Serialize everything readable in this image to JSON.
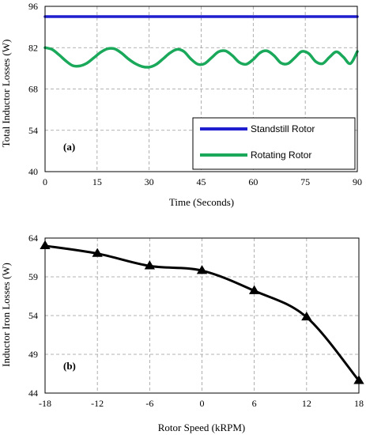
{
  "chart_data": [
    {
      "type": "line",
      "panel_label": "(a)",
      "xlabel": "Time (Seconds)",
      "ylabel": "Total Inductor Losses (W)",
      "xlim": [
        0,
        90
      ],
      "ylim": [
        40,
        96
      ],
      "xticks": [
        0,
        15,
        30,
        45,
        60,
        75,
        90
      ],
      "yticks": [
        40,
        54,
        68,
        82,
        96
      ],
      "grid": true,
      "legend_position": "bottom-right",
      "series": [
        {
          "name": "Standstill Rotor",
          "color": "#1f1fd0",
          "x": [
            0,
            90
          ],
          "y": [
            92.5,
            92.5
          ]
        },
        {
          "name": "Rotating Rotor",
          "color": "#1aa85a",
          "x": [
            0,
            2,
            4,
            6,
            8,
            10,
            12,
            14,
            16,
            18,
            20,
            22,
            24,
            26,
            28,
            30,
            32,
            34,
            36,
            38,
            40,
            42,
            44,
            46,
            48,
            50,
            52,
            54,
            56,
            58,
            60,
            62,
            64,
            66,
            68,
            70,
            72,
            74,
            76,
            78,
            80,
            82,
            84,
            86,
            88,
            90
          ],
          "y": [
            82.0,
            81.4,
            79.6,
            77.5,
            75.9,
            75.8,
            76.7,
            78.5,
            80.4,
            81.6,
            81.6,
            80.2,
            78.2,
            76.6,
            75.6,
            75.4,
            76.3,
            78.2,
            80.2,
            81.4,
            80.7,
            78.2,
            76.4,
            76.6,
            78.6,
            80.6,
            80.9,
            79.3,
            77.0,
            76.4,
            78.0,
            80.3,
            80.9,
            79.3,
            76.8,
            76.6,
            78.6,
            80.7,
            80.0,
            77.3,
            76.6,
            78.8,
            80.6,
            78.8,
            76.6,
            80.7
          ]
        }
      ]
    },
    {
      "type": "line",
      "panel_label": "(b)",
      "xlabel": "Rotor Speed (kRPM)",
      "ylabel": "Inductor Iron Losses (W)",
      "xlim": [
        -18,
        18
      ],
      "ylim": [
        44,
        64
      ],
      "xticks": [
        -18,
        -12,
        -6,
        0,
        6,
        12,
        18
      ],
      "yticks": [
        44,
        49,
        54,
        59,
        64
      ],
      "grid": true,
      "series": [
        {
          "marker": "triangle",
          "color": "#000000",
          "x": [
            -18,
            -12,
            -6,
            0,
            6,
            12,
            18
          ],
          "y": [
            63.0,
            62.0,
            60.4,
            59.8,
            57.2,
            53.8,
            45.6
          ]
        }
      ]
    }
  ]
}
